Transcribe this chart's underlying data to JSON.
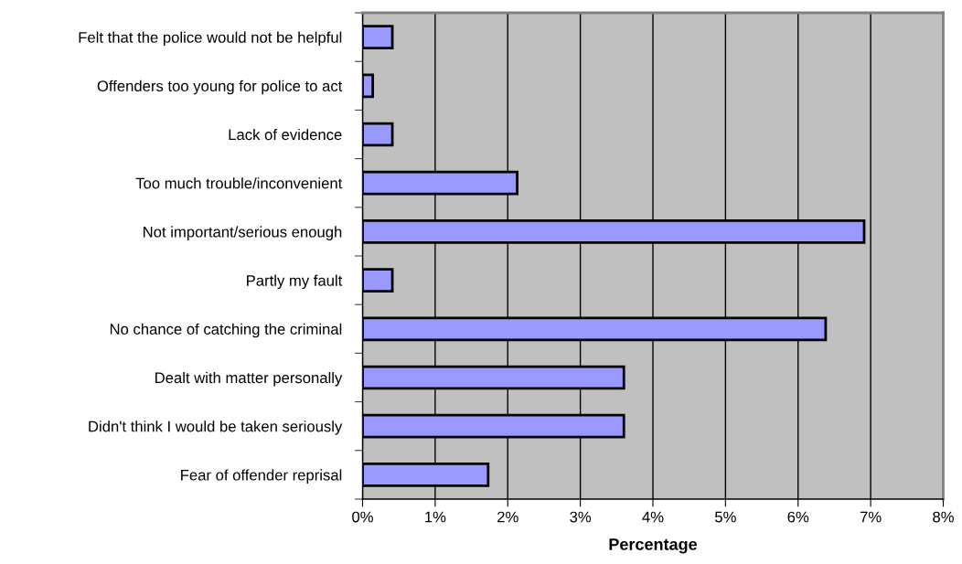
{
  "chart_data": {
    "type": "bar",
    "orientation": "horizontal",
    "xlabel": "Percentage",
    "categories": [
      "Felt that the police would not be helpful",
      "Offenders too young for police to act",
      "Lack of evidence",
      "Too much trouble/inconvenient",
      "Not important/serious enough",
      "Partly my fault",
      "No chance of catching the criminal",
      "Dealt with matter personally",
      "Didn't think I would be taken seriously",
      "Fear of offender reprisal"
    ],
    "values": [
      0.41,
      0.14,
      0.41,
      2.13,
      6.91,
      0.41,
      6.38,
      3.6,
      3.6,
      1.73
    ],
    "color": "#9999ff",
    "xlim": [
      0,
      8
    ],
    "xticks": [
      {
        "value": 0,
        "label": "0%"
      },
      {
        "value": 1,
        "label": "1%"
      },
      {
        "value": 2,
        "label": "2%"
      },
      {
        "value": 3,
        "label": "3%"
      },
      {
        "value": 4,
        "label": "4%"
      },
      {
        "value": 5,
        "label": "5%"
      },
      {
        "value": 6,
        "label": "6%"
      },
      {
        "value": 7,
        "label": "7%"
      },
      {
        "value": 8,
        "label": "8%"
      }
    ],
    "grid": "x",
    "legend": false
  }
}
